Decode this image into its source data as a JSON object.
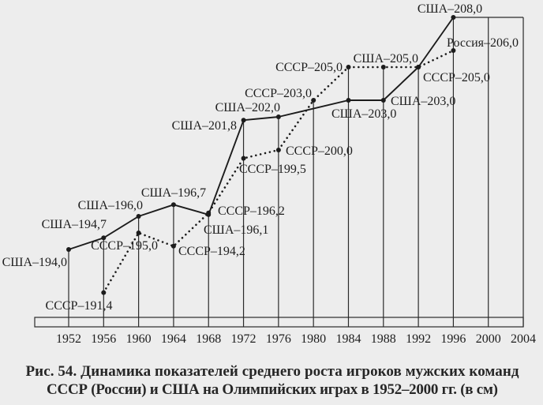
{
  "chart_data": {
    "type": "line",
    "categories": [
      "1952",
      "1956",
      "1960",
      "1964",
      "1968",
      "1972",
      "1976",
      "1980",
      "1984",
      "1988",
      "1992",
      "1996",
      "2000",
      "2004"
    ],
    "ylim": [
      190,
      208
    ],
    "series": [
      {
        "values": [
          194.0,
          194.7,
          196.0,
          196.7,
          196.1,
          201.8,
          202.0,
          null,
          203.0,
          203.0,
          205.0,
          208.0,
          null,
          null
        ],
        "labels": [
          "США–194,0",
          "США–194,7",
          "США–196,0",
          "США–196,7",
          "США–196,1",
          "США–201,8",
          "США–202,0",
          null,
          "США–203,0",
          "США–203,0",
          "США–205,0",
          "США–208,0",
          null,
          null
        ]
      },
      {
        "values": [
          null,
          191.4,
          195.0,
          194.2,
          196.2,
          199.5,
          200.0,
          203.0,
          205.0,
          205.0,
          205.0,
          206.0,
          null,
          null
        ],
        "labels": [
          null,
          "СССР–191,4",
          "СССР–195,0",
          "СССР–194,2",
          "СССР–196,2",
          "СССР–199,5",
          "СССР–200,0",
          "СССР–203,0",
          "СССР–205,0",
          null,
          "СССР–205,0",
          "Россия–206,0",
          null,
          null
        ]
      }
    ],
    "caption": [
      "Рис. 54. Динамика показателей среднего роста игроков мужских команд",
      "СССР (России) и США на Олимпийских играх в 1952–2000 гг. (в см)"
    ]
  }
}
